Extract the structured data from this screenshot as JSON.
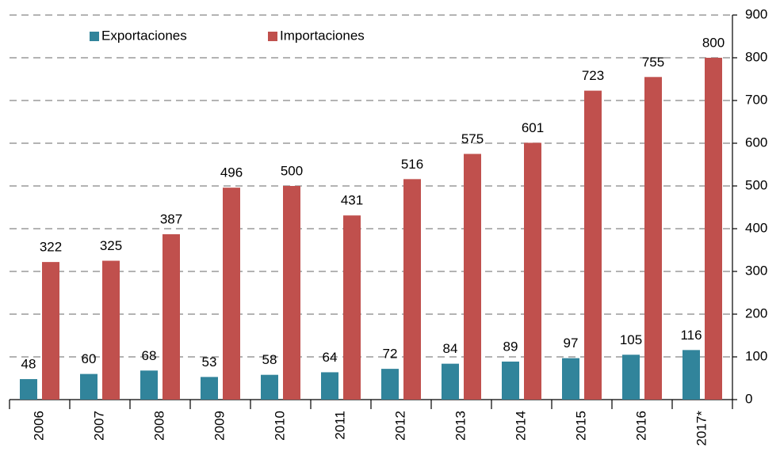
{
  "chart_data": {
    "type": "bar",
    "categories": [
      "2006",
      "2007",
      "2008",
      "2009",
      "2010",
      "2011",
      "2012",
      "2013",
      "2014",
      "2015",
      "2016",
      "2017*"
    ],
    "series": [
      {
        "name": "Exportaciones",
        "color": "#31849b",
        "values": [
          48,
          60,
          68,
          53,
          58,
          64,
          72,
          84,
          89,
          97,
          105,
          116
        ]
      },
      {
        "name": "Importaciones",
        "color": "#c0504d",
        "values": [
          322,
          325,
          387,
          496,
          500,
          431,
          516,
          575,
          601,
          723,
          755,
          800
        ]
      }
    ],
    "ylim": [
      0,
      900
    ],
    "yticks": [
      0,
      100,
      200,
      300,
      400,
      500,
      600,
      700,
      800,
      900
    ],
    "grid": true,
    "yaxis_position": "right",
    "legend": "top-left"
  }
}
